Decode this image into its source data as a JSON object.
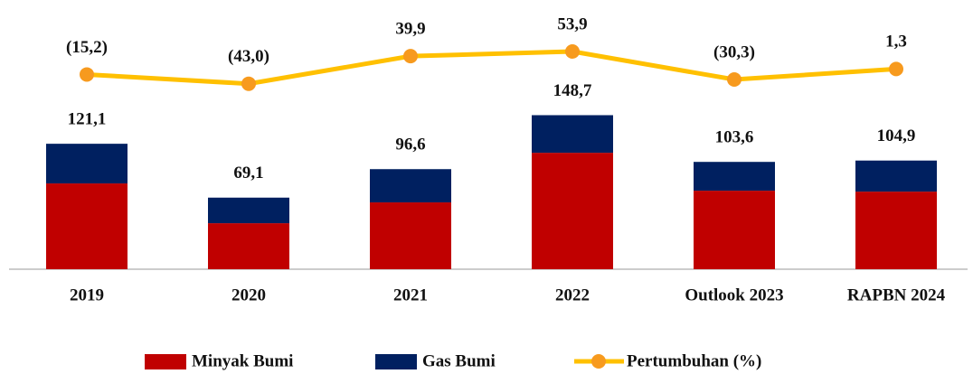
{
  "chart_data": {
    "type": "bar",
    "stacked": true,
    "categories": [
      "2019",
      "2020",
      "2021",
      "2022",
      "Outlook 2023",
      "RAPBN 2024"
    ],
    "series": [
      {
        "name": "Minyak Bumi",
        "color": "#c00000",
        "values": [
          82.8,
          44.4,
          64.5,
          112.4,
          75.8,
          74.9
        ]
      },
      {
        "name": "Gas Bumi",
        "color": "#002060",
        "values": [
          38.3,
          24.7,
          32.1,
          36.3,
          27.8,
          30.0
        ]
      },
      {
        "name": "Pertumbuhan (%)",
        "type": "line",
        "axis": "y2",
        "color": "#ffc000",
        "marker_color": "#f79a1e",
        "values": [
          -15.2,
          -43.0,
          39.9,
          53.9,
          -30.3,
          1.3
        ],
        "value_labels": [
          "(15,2)",
          "(43,0)",
          "39,9",
          "53,9",
          "(30,3)",
          "1,3"
        ]
      }
    ],
    "totals": [
      121.1,
      69.1,
      96.6,
      148.7,
      103.6,
      104.9
    ],
    "total_labels": [
      "121,1",
      "69,1",
      "96,6",
      "148,7",
      "103,6",
      "104,9"
    ],
    "ylim": [
      0,
      225
    ],
    "y2lim": [
      -600,
      100
    ],
    "legend": "bottom"
  }
}
